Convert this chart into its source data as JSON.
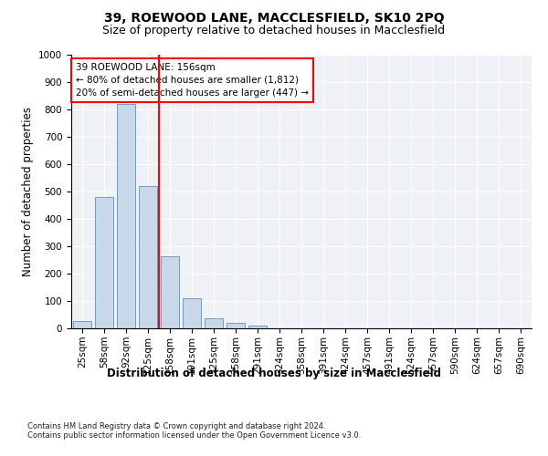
{
  "title_line1": "39, ROEWOOD LANE, MACCLESFIELD, SK10 2PQ",
  "title_line2": "Size of property relative to detached houses in Macclesfield",
  "xlabel": "Distribution of detached houses by size in Macclesfield",
  "ylabel": "Number of detached properties",
  "footnote": "Contains HM Land Registry data © Crown copyright and database right 2024.\nContains public sector information licensed under the Open Government Licence v3.0.",
  "categories": [
    "25sqm",
    "58sqm",
    "92sqm",
    "125sqm",
    "158sqm",
    "191sqm",
    "225sqm",
    "258sqm",
    "291sqm",
    "324sqm",
    "358sqm",
    "391sqm",
    "424sqm",
    "457sqm",
    "491sqm",
    "524sqm",
    "557sqm",
    "590sqm",
    "624sqm",
    "657sqm",
    "690sqm"
  ],
  "values": [
    28,
    480,
    820,
    520,
    265,
    110,
    38,
    20,
    10,
    0,
    0,
    0,
    0,
    0,
    0,
    0,
    0,
    0,
    0,
    0,
    0
  ],
  "bar_color": "#c8d8e8",
  "bar_edge_color": "#7799bb",
  "vline_x": 3.5,
  "annotation_line1": "39 ROEWOOD LANE: 156sqm",
  "annotation_line2": "← 80% of detached houses are smaller (1,812)",
  "annotation_line3": "20% of semi-detached houses are larger (447) →",
  "ylim": [
    0,
    1000
  ],
  "yticks": [
    0,
    100,
    200,
    300,
    400,
    500,
    600,
    700,
    800,
    900,
    1000
  ],
  "background_color": "#eef2f7",
  "grid_color": "#ffffff",
  "title_fontsize": 10,
  "subtitle_fontsize": 9,
  "axis_label_fontsize": 8.5,
  "tick_fontsize": 7.5,
  "annotation_fontsize": 7.5,
  "footnote_fontsize": 6.0
}
